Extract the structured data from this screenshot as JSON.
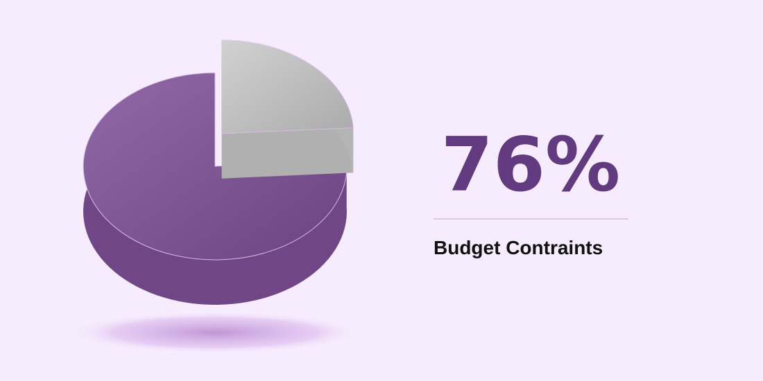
{
  "chart_data": {
    "type": "pie",
    "categories": [
      "Budget Contraints",
      null
    ],
    "values": [
      76,
      24
    ],
    "value_labels": [
      "76%",
      null
    ],
    "colors": [
      "#7d4f97",
      "#c9c9c9"
    ]
  }
}
